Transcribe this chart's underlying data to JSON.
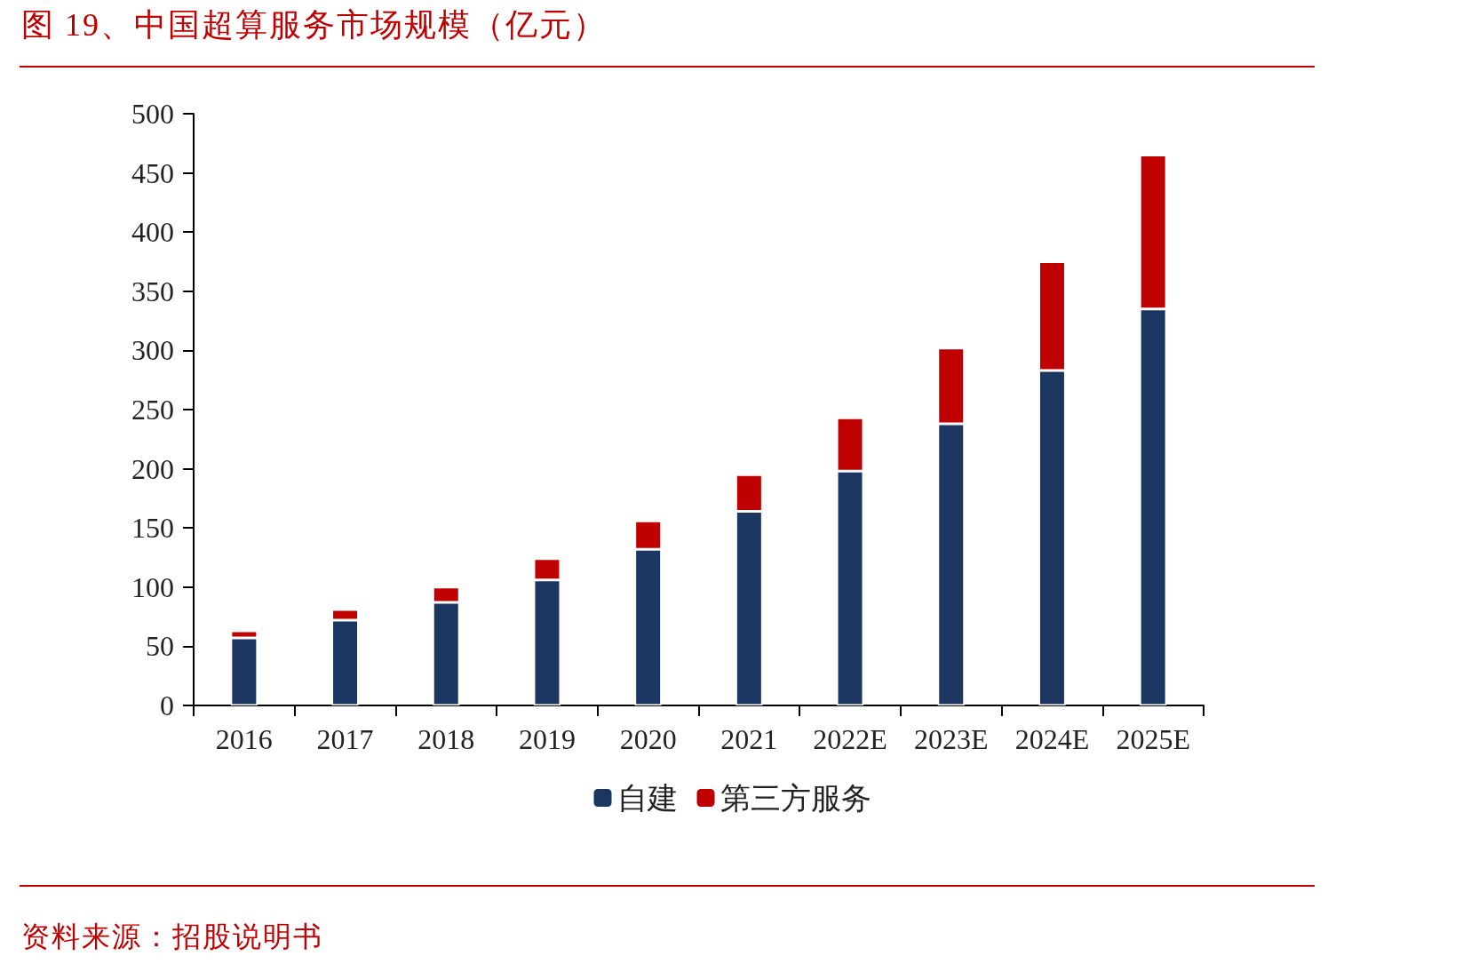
{
  "chart_data": {
    "type": "bar",
    "title": "图 19、中国超算服务市场规模（亿元）",
    "categories": [
      "2016",
      "2017",
      "2018",
      "2019",
      "2020",
      "2021",
      "2022E",
      "2023E",
      "2024E",
      "2025E"
    ],
    "series": [
      {
        "name": "自建",
        "color": "#1b3660",
        "values": [
          57,
          72,
          87,
          106,
          132,
          164,
          198,
          238,
          283,
          335
        ]
      },
      {
        "name": "第三方服务",
        "color": "#c00000",
        "values": [
          6,
          9,
          13,
          18,
          24,
          31,
          45,
          64,
          92,
          130
        ]
      }
    ],
    "stacked": true,
    "ylim": [
      0,
      500
    ],
    "yticks": [
      0,
      50,
      100,
      150,
      200,
      250,
      300,
      350,
      400,
      450,
      500
    ],
    "grid": false,
    "legend": "bottom",
    "annotations": [
      "资料来源：招股说明书"
    ]
  }
}
